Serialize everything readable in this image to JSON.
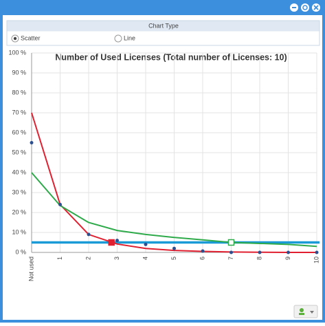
{
  "window": {
    "panel_title": "Chart Type",
    "options": [
      {
        "label": "Scatter",
        "checked": true
      },
      {
        "label": "Line",
        "checked": false
      }
    ]
  },
  "chart_data": {
    "type": "line",
    "title": "Number of Used Licenses (Total number of Licenses: 10)",
    "x": [
      0,
      1,
      2,
      3,
      4,
      5,
      6,
      7,
      8,
      9,
      10
    ],
    "xlim": [
      0,
      10
    ],
    "xticks": [
      {
        "value": 0,
        "label": "Not used"
      },
      1,
      2,
      3,
      4,
      5,
      6,
      7,
      8,
      9,
      10
    ],
    "ylim": [
      0,
      100
    ],
    "yticks": [
      {
        "value": 0,
        "label": "0 %"
      },
      {
        "value": 10,
        "label": "10 %"
      },
      {
        "value": 20,
        "label": "20 %"
      },
      {
        "value": 30,
        "label": "30 %"
      },
      {
        "value": 40,
        "label": "40 %"
      },
      {
        "value": 50,
        "label": "50 %"
      },
      {
        "value": 60,
        "label": "60 %"
      },
      {
        "value": 70,
        "label": "70 %"
      },
      {
        "value": 80,
        "label": "80 %"
      },
      {
        "value": 90,
        "label": "90 %"
      },
      {
        "value": 100,
        "label": "100 %"
      }
    ],
    "grid": true,
    "series": [
      {
        "kind": "scatter",
        "color": "#2b4f8f",
        "values": [
          55,
          24,
          9,
          6,
          4,
          2,
          0.7,
          0,
          0,
          0,
          0
        ]
      },
      {
        "kind": "line",
        "color": "#e02030",
        "values": [
          70,
          24,
          9,
          4.2,
          2,
          1,
          0.5,
          0.2,
          0.1,
          0,
          0
        ]
      },
      {
        "kind": "line",
        "color": "#2eaa4a",
        "values": [
          40,
          23.5,
          15,
          11,
          9,
          7.5,
          6.3,
          5,
          4.5,
          4,
          3
        ]
      }
    ],
    "threshold": {
      "value": 5,
      "color": "#1a9ad6"
    },
    "markers": [
      {
        "x": 2.8,
        "y": 5,
        "color": "#e02030",
        "filled": true
      },
      {
        "x": 7,
        "y": 5,
        "color": "#2eaa4a",
        "filled": false
      }
    ]
  }
}
